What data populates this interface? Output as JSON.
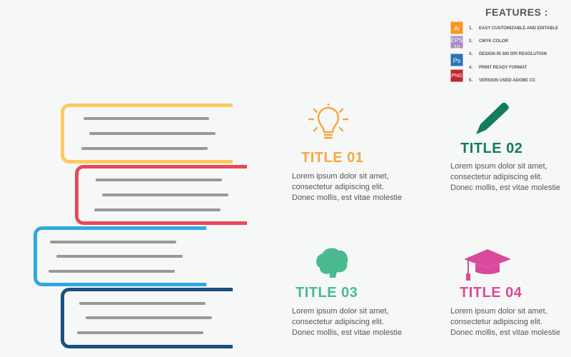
{
  "features": {
    "title": "FEATURES :",
    "items": [
      {
        "badge": "Ai",
        "num": "1.",
        "text": "EASY CUSTOMIZABLE AND EDITABLE",
        "color": "#f7941d"
      },
      {
        "badge": "EPS",
        "num": "2.",
        "text": "CMYK COLOR",
        "color": "#a98bc4"
      },
      {
        "badge": "Ps",
        "num": "3.",
        "text": "DESIGN IN 300 DPI RESOLUTION",
        "color": "#2a72b8"
      },
      {
        "badge": "PNG",
        "num": "4.",
        "text": "PRINT READY FORMAT",
        "color": "#c1272d"
      },
      {
        "badge": "",
        "num": "5.",
        "text": "VERSION USED-ADOBE CC",
        "color": ""
      }
    ]
  },
  "books": [
    {
      "color": "#fdc960"
    },
    {
      "color": "#e64a5a"
    },
    {
      "color": "#2fa9df"
    },
    {
      "color": "#1b4f80"
    }
  ],
  "cards": [
    {
      "title": "TITLE 01",
      "color": "#f6a744",
      "icon": "lightbulb-icon",
      "body": "Lorem ipsum dolor sit amet, consectetur adipiscing elit. Donec mollis, est vitae molestie"
    },
    {
      "title": "TITLE 02",
      "color": "#147b5c",
      "icon": "pencil-icon",
      "body": "Lorem ipsum dolor sit amet, consectetur adipiscing elit. Donec mollis, est vitae molestie"
    },
    {
      "title": "TITLE 03",
      "color": "#4bba8f",
      "icon": "brain-icon",
      "body": "Lorem ipsum dolor sit amet, consectetur adipiscing elit. Donec mollis, est vitae molestie"
    },
    {
      "title": "TITLE 04",
      "color": "#d94a9c",
      "icon": "graduation-cap-icon",
      "body": "Lorem ipsum dolor sit amet, consectetur adipiscing elit. Donec mollis, est vitae molestie"
    }
  ]
}
